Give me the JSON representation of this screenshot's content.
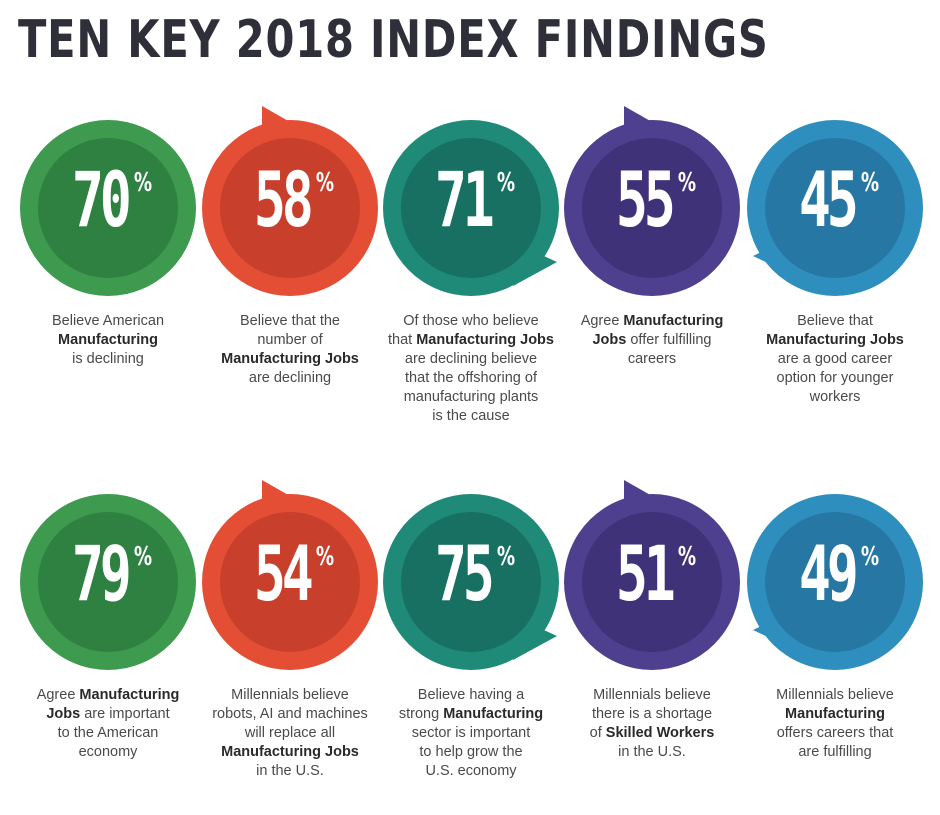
{
  "title": "TEN KEY 2018 INDEX FINDINGS",
  "colors": {
    "green": "#3d9a4f",
    "green_dark": "#2f8142",
    "red": "#e44e35",
    "red_dark": "#c8402b",
    "teal": "#1f8a77",
    "teal_dark": "#177062",
    "purple": "#4f3f8f",
    "purple_dark": "#3f3278",
    "blue": "#2e8fbe",
    "blue_dark": "#2677a3"
  },
  "findings": [
    {
      "value": "70",
      "unit": "%",
      "color": "green",
      "arrow": "bottom-left",
      "caption": [
        {
          "t": "Believe American",
          "b": false
        },
        {
          "t": "\n",
          "b": false
        },
        {
          "t": "Manufacturing",
          "b": true
        },
        {
          "t": "\n",
          "b": false
        },
        {
          "t": "is declining",
          "b": false
        }
      ]
    },
    {
      "value": "58",
      "unit": "%",
      "color": "red",
      "arrow": "top",
      "caption": [
        {
          "t": "Believe that the",
          "b": false
        },
        {
          "t": "\n",
          "b": false
        },
        {
          "t": "number of",
          "b": false
        },
        {
          "t": "\n",
          "b": false
        },
        {
          "t": "Manufacturing Jobs",
          "b": true
        },
        {
          "t": "\n",
          "b": false
        },
        {
          "t": "are declining",
          "b": false
        }
      ]
    },
    {
      "value": "71",
      "unit": "%",
      "color": "teal",
      "arrow": "bottom-right",
      "caption": [
        {
          "t": "Of those who believe",
          "b": false
        },
        {
          "t": "\n",
          "b": false
        },
        {
          "t": "that ",
          "b": false
        },
        {
          "t": "Manufacturing Jobs",
          "b": true
        },
        {
          "t": "\n",
          "b": false
        },
        {
          "t": "are declining believe",
          "b": false
        },
        {
          "t": "\n",
          "b": false
        },
        {
          "t": "that the offshoring of",
          "b": false
        },
        {
          "t": "\n",
          "b": false
        },
        {
          "t": "manufacturing plants",
          "b": false
        },
        {
          "t": "\n",
          "b": false
        },
        {
          "t": "is the cause",
          "b": false
        }
      ]
    },
    {
      "value": "55",
      "unit": "%",
      "color": "purple",
      "arrow": "top",
      "caption": [
        {
          "t": "Agree ",
          "b": false
        },
        {
          "t": "Manufacturing",
          "b": true
        },
        {
          "t": "\n",
          "b": false
        },
        {
          "t": "Jobs",
          "b": true
        },
        {
          "t": " offer fulfilling",
          "b": false
        },
        {
          "t": "\n",
          "b": false
        },
        {
          "t": "careers",
          "b": false
        }
      ]
    },
    {
      "value": "45",
      "unit": "%",
      "color": "blue",
      "arrow": "left",
      "caption": [
        {
          "t": "Believe that",
          "b": false
        },
        {
          "t": "\n",
          "b": false
        },
        {
          "t": "Manufacturing Jobs",
          "b": true
        },
        {
          "t": "\n",
          "b": false
        },
        {
          "t": "are a good career",
          "b": false
        },
        {
          "t": "\n",
          "b": false
        },
        {
          "t": "option for younger",
          "b": false
        },
        {
          "t": "\n",
          "b": false
        },
        {
          "t": "workers",
          "b": false
        }
      ]
    },
    {
      "value": "79",
      "unit": "%",
      "color": "green",
      "arrow": "bottom-left",
      "caption": [
        {
          "t": "Agree ",
          "b": false
        },
        {
          "t": "Manufacturing",
          "b": true
        },
        {
          "t": "\n",
          "b": false
        },
        {
          "t": "Jobs",
          "b": true
        },
        {
          "t": " are important",
          "b": false
        },
        {
          "t": "\n",
          "b": false
        },
        {
          "t": "to the American",
          "b": false
        },
        {
          "t": "\n",
          "b": false
        },
        {
          "t": "economy",
          "b": false
        }
      ]
    },
    {
      "value": "54",
      "unit": "%",
      "color": "red",
      "arrow": "top",
      "caption": [
        {
          "t": "Millennials believe",
          "b": false
        },
        {
          "t": "\n",
          "b": false
        },
        {
          "t": "robots, AI and machines",
          "b": false
        },
        {
          "t": "\n",
          "b": false
        },
        {
          "t": "will replace all",
          "b": false
        },
        {
          "t": "\n",
          "b": false
        },
        {
          "t": "Manufacturing Jobs",
          "b": true
        },
        {
          "t": "\n",
          "b": false
        },
        {
          "t": "in the U.S.",
          "b": false
        }
      ]
    },
    {
      "value": "75",
      "unit": "%",
      "color": "teal",
      "arrow": "bottom-right",
      "caption": [
        {
          "t": "Believe having a",
          "b": false
        },
        {
          "t": "\n",
          "b": false
        },
        {
          "t": "strong ",
          "b": false
        },
        {
          "t": "Manufacturing",
          "b": true
        },
        {
          "t": "\n",
          "b": false
        },
        {
          "t": "sector is important",
          "b": false
        },
        {
          "t": "\n",
          "b": false
        },
        {
          "t": "to help grow the",
          "b": false
        },
        {
          "t": "\n",
          "b": false
        },
        {
          "t": "U.S. economy",
          "b": false
        }
      ]
    },
    {
      "value": "51",
      "unit": "%",
      "color": "purple",
      "arrow": "top",
      "caption": [
        {
          "t": "Millennials believe",
          "b": false
        },
        {
          "t": "\n",
          "b": false
        },
        {
          "t": "there is a shortage",
          "b": false
        },
        {
          "t": "\n",
          "b": false
        },
        {
          "t": "of ",
          "b": false
        },
        {
          "t": "Skilled Workers",
          "b": true
        },
        {
          "t": "\n",
          "b": false
        },
        {
          "t": "in the U.S.",
          "b": false
        }
      ]
    },
    {
      "value": "49",
      "unit": "%",
      "color": "blue",
      "arrow": "left",
      "caption": [
        {
          "t": "Millennials believe",
          "b": false
        },
        {
          "t": "\n",
          "b": false
        },
        {
          "t": "Manufacturing",
          "b": true
        },
        {
          "t": "\n",
          "b": false
        },
        {
          "t": "offers careers that",
          "b": false
        },
        {
          "t": "\n",
          "b": false
        },
        {
          "t": "are fulfilling",
          "b": false
        }
      ]
    }
  ]
}
